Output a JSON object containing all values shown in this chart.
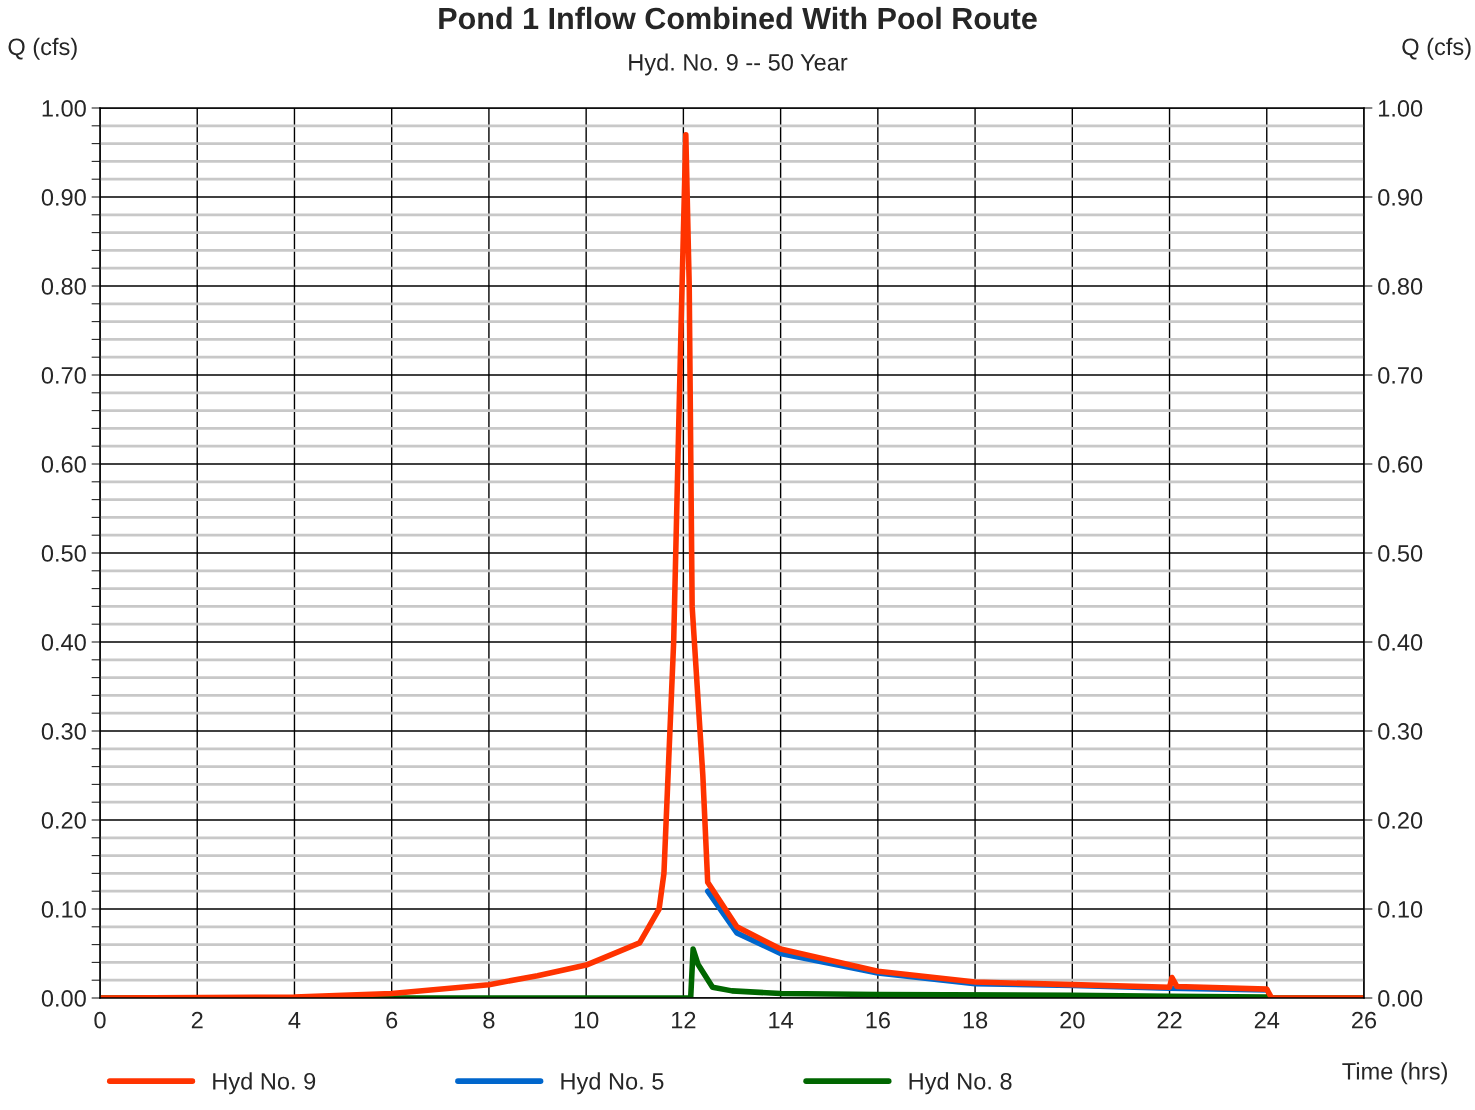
{
  "chart_data": {
    "type": "line",
    "title": "Pond 1 Inflow Combined With Pool Route",
    "subtitle": "Hyd. No. 9 -- 50 Year",
    "xlabel": "Time (hrs)",
    "ylabel": "Q (cfs)",
    "y2label": "Q (cfs)",
    "series": [
      {
        "name": "Hyd No. 9",
        "color": "#ff3300",
        "x": [
          0,
          4,
          6,
          8,
          9,
          10,
          11.1,
          11.5,
          11.6,
          11.8,
          11.95,
          12.05,
          12.12,
          12.18,
          12.4,
          12.5,
          13.1,
          14,
          16,
          18,
          20,
          22,
          22.05,
          22.15,
          24,
          24.1,
          26
        ],
        "values": [
          0,
          0.001,
          0.005,
          0.015,
          0.025,
          0.037,
          0.062,
          0.1,
          0.14,
          0.4,
          0.75,
          0.97,
          0.8,
          0.44,
          0.25,
          0.13,
          0.08,
          0.055,
          0.03,
          0.018,
          0.015,
          0.012,
          0.023,
          0.013,
          0.01,
          0,
          0
        ]
      },
      {
        "name": "Hyd No. 5",
        "color": "#0066cc",
        "x": [
          12.5,
          13.1,
          14,
          16,
          18,
          20,
          22,
          24
        ],
        "values": [
          0.12,
          0.073,
          0.05,
          0.028,
          0.016,
          0.014,
          0.011,
          0.009
        ]
      },
      {
        "name": "Hyd No. 8",
        "color": "#006600",
        "x": [
          0,
          12.15,
          12.2,
          12.3,
          12.6,
          13,
          14,
          16,
          20,
          22,
          24,
          24.1,
          26
        ],
        "values": [
          0,
          0,
          0.055,
          0.038,
          0.012,
          0.008,
          0.005,
          0.004,
          0.003,
          0.002,
          0.001,
          0,
          0
        ]
      }
    ],
    "xlim": [
      0,
      26
    ],
    "xticks": [
      0,
      2,
      4,
      6,
      8,
      10,
      12,
      14,
      16,
      18,
      20,
      22,
      24,
      26
    ],
    "ylim": [
      0,
      1
    ],
    "yticks": [
      {
        "value": 0,
        "label": "0.00"
      },
      {
        "value": 0.02,
        "label": null
      },
      {
        "value": 0.04,
        "label": null
      },
      {
        "value": 0.06,
        "label": null
      },
      {
        "value": 0.08,
        "label": null
      },
      {
        "value": 0.1,
        "label": "0.10"
      },
      {
        "value": 0.12,
        "label": null
      },
      {
        "value": 0.14,
        "label": null
      },
      {
        "value": 0.16,
        "label": null
      },
      {
        "value": 0.18,
        "label": null
      },
      {
        "value": 0.2,
        "label": "0.20"
      },
      {
        "value": 0.22,
        "label": null
      },
      {
        "value": 0.24,
        "label": null
      },
      {
        "value": 0.26,
        "label": null
      },
      {
        "value": 0.28,
        "label": null
      },
      {
        "value": 0.3,
        "label": "0.30"
      },
      {
        "value": 0.32,
        "label": null
      },
      {
        "value": 0.34,
        "label": null
      },
      {
        "value": 0.36,
        "label": null
      },
      {
        "value": 0.38,
        "label": null
      },
      {
        "value": 0.4,
        "label": "0.40"
      },
      {
        "value": 0.42,
        "label": null
      },
      {
        "value": 0.44,
        "label": null
      },
      {
        "value": 0.46,
        "label": null
      },
      {
        "value": 0.48,
        "label": null
      },
      {
        "value": 0.5,
        "label": "0.50"
      },
      {
        "value": 0.52,
        "label": null
      },
      {
        "value": 0.54,
        "label": null
      },
      {
        "value": 0.56,
        "label": null
      },
      {
        "value": 0.58,
        "label": null
      },
      {
        "value": 0.6,
        "label": "0.60"
      },
      {
        "value": 0.62,
        "label": null
      },
      {
        "value": 0.64,
        "label": null
      },
      {
        "value": 0.66,
        "label": null
      },
      {
        "value": 0.68,
        "label": null
      },
      {
        "value": 0.7,
        "label": "0.70"
      },
      {
        "value": 0.72,
        "label": null
      },
      {
        "value": 0.74,
        "label": null
      },
      {
        "value": 0.76,
        "label": null
      },
      {
        "value": 0.78,
        "label": null
      },
      {
        "value": 0.8,
        "label": "0.80"
      },
      {
        "value": 0.82,
        "label": null
      },
      {
        "value": 0.84,
        "label": null
      },
      {
        "value": 0.86,
        "label": null
      },
      {
        "value": 0.88,
        "label": null
      },
      {
        "value": 0.9,
        "label": "0.90"
      },
      {
        "value": 0.92,
        "label": null
      },
      {
        "value": 0.94,
        "label": null
      },
      {
        "value": 0.96,
        "label": null
      },
      {
        "value": 0.98,
        "label": null
      },
      {
        "value": 1,
        "label": "1.00"
      }
    ],
    "y2lim": [
      0,
      1
    ],
    "y2ticks": [
      {
        "value": 0,
        "label": "0.00"
      },
      {
        "value": 0.1,
        "label": "0.10"
      },
      {
        "value": 0.2,
        "label": "0.20"
      },
      {
        "value": 0.3,
        "label": "0.30"
      },
      {
        "value": 0.4,
        "label": "0.40"
      },
      {
        "value": 0.5,
        "label": "0.50"
      },
      {
        "value": 0.6,
        "label": "0.60"
      },
      {
        "value": 0.7,
        "label": "0.70"
      },
      {
        "value": 0.8,
        "label": "0.80"
      },
      {
        "value": 0.9,
        "label": "0.90"
      },
      {
        "value": 1,
        "label": "1.00"
      }
    ],
    "grid": true,
    "legend": "bottom",
    "line_style": "solid",
    "marker": "none"
  }
}
